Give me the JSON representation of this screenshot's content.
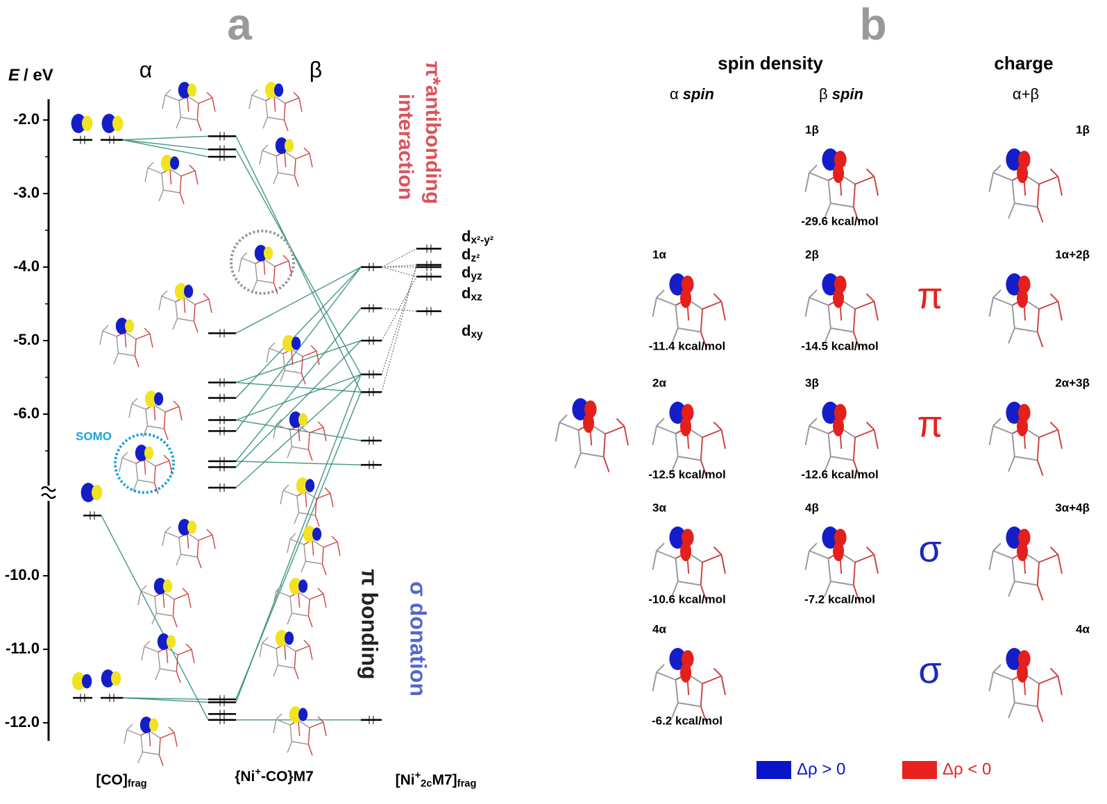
{
  "panel_a": {
    "label": "a",
    "axis": {
      "title": "E",
      "unit": "/ eV",
      "ticks": [
        {
          "value": -2,
          "label": "-2.0"
        },
        {
          "value": -3,
          "label": "-3.0"
        },
        {
          "value": -4,
          "label": "-4.0"
        },
        {
          "value": -5,
          "label": "-5.0"
        },
        {
          "value": -6,
          "label": "-6.0"
        },
        {
          "value": -10,
          "label": "-10.0"
        },
        {
          "value": -11,
          "label": "-11.0"
        },
        {
          "value": -12,
          "label": "-12.0"
        }
      ]
    },
    "spin_headers": [
      "α",
      "β"
    ],
    "antibonding": [
      "π*antibonding",
      "interaction"
    ],
    "pi_bonding": "π bonding",
    "sigma_donation": "σ donation",
    "somo": "SOMO",
    "d_orbitals": [
      [
        {
          "text": "d"
        },
        {
          "text": "x²-y²",
          "pos": "sub"
        }
      ],
      [
        {
          "text": "d"
        },
        {
          "text": "z²",
          "pos": "sub"
        }
      ],
      [
        {
          "text": "d"
        },
        {
          "text": "yz",
          "pos": "sub"
        }
      ],
      [
        {
          "text": "d"
        },
        {
          "text": "xz",
          "pos": "sub"
        }
      ],
      [
        {
          "text": "d"
        },
        {
          "text": "xy",
          "pos": "sub"
        }
      ]
    ],
    "columns": [
      [
        {
          "text": "[CO]"
        },
        {
          "text": "frag",
          "pos": "sub"
        }
      ],
      [
        {
          "text": "{Ni"
        },
        {
          "text": "+",
          "pos": "sup"
        },
        {
          "text": "-CO}M7"
        }
      ],
      [
        {
          "text": "[Ni"
        },
        {
          "text": "+",
          "pos": "sup"
        },
        {
          "text": "2c",
          "pos": "sub"
        },
        {
          "text": "M7]"
        },
        {
          "text": "frag",
          "pos": "sub"
        }
      ]
    ],
    "levels": [
      [
        -2.27,
        -11.66
      ],
      [
        -2.27,
        -11.66
      ],
      [
        -9.18
      ],
      [
        -2.22,
        -2.4,
        -2.5,
        -4.9,
        -5.57,
        -5.78,
        -6.08,
        -6.23,
        -6.64,
        -6.72,
        -7.0,
        -11.68,
        -11.72,
        -11.96,
        -11.88
      ],
      [
        -4.0,
        -4.56,
        -5.0,
        -5.46,
        -5.7,
        -6.36,
        -6.69,
        -11.96
      ],
      [
        -3.75,
        -3.97,
        -4.0,
        -4.13,
        -4.6
      ]
    ]
  },
  "panel_b": {
    "label": "b",
    "headers": [
      "spin density",
      "charge"
    ],
    "alpha_spin": {
      "greek": "α",
      "word": "spin"
    },
    "beta_spin": {
      "greek": "β",
      "word": "spin"
    },
    "sum": "α+β",
    "rows": [
      {
        "beta": {
          "label": "1β",
          "energy": "-29.6 kcal/mol"
        },
        "charge": "1β"
      },
      {
        "alpha": {
          "label": "1α",
          "energy": "-11.4 kcal/mol"
        },
        "beta": {
          "label": "2β",
          "energy": "-14.5 kcal/mol"
        },
        "symbol": {
          "text": "π",
          "color": "#e8221e"
        },
        "charge": "1α+2β"
      },
      {
        "alpha": {
          "label": "2α",
          "energy": "-12.5 kcal/mol"
        },
        "beta": {
          "label": "3β",
          "energy": "-12.6 kcal/mol"
        },
        "symbol": {
          "text": "π",
          "color": "#e8221e"
        },
        "charge": "2α+3β"
      },
      {
        "alpha": {
          "label": "3α",
          "energy": "-10.6 kcal/mol"
        },
        "beta": {
          "label": "4β",
          "energy": "-7.2 kcal/mol"
        },
        "symbol": {
          "text": "σ",
          "color": "#1a2ab8"
        },
        "charge": "3α+4β"
      },
      {
        "alpha": {
          "label": "4α",
          "energy": "-6.2 kcal/mol"
        },
        "symbol": {
          "text": "σ",
          "color": "#1a2ab8"
        },
        "charge": "4α"
      }
    ],
    "legend": [
      {
        "text": "Δρ > 0",
        "color": "#0a14c8"
      },
      {
        "text": "Δρ < 0",
        "color": "#e8221e"
      }
    ]
  }
}
